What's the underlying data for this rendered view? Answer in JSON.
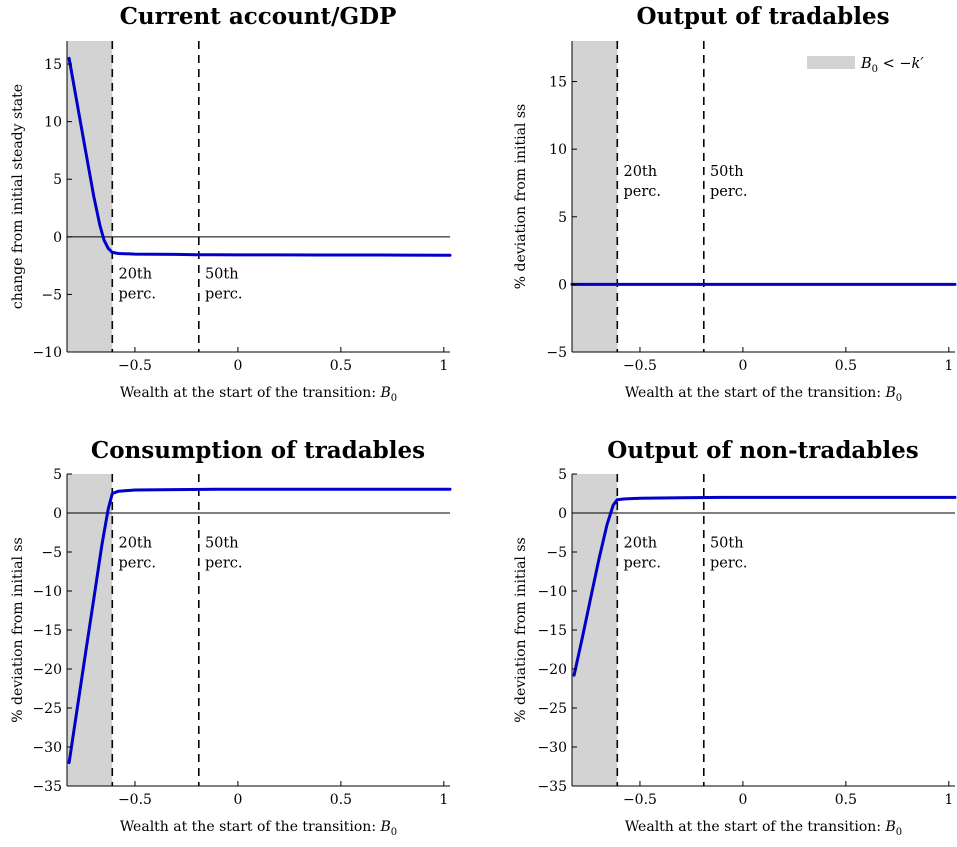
{
  "chart_data": [
    {
      "type": "line",
      "title": "Current account/GDP",
      "xlabel": "Wealth at the start of the transition:",
      "xlabel_symbol": "B",
      "xlabel_sub": "0",
      "ylabel": "change from initial steady state",
      "xlim": [
        -0.83,
        1.03
      ],
      "ylim": [
        -10,
        17
      ],
      "xticks": [
        -0.5,
        0,
        0.5,
        1
      ],
      "xtick_labels": [
        "−0.5",
        "0",
        "0.5",
        "1"
      ],
      "yticks": [
        -10,
        -5,
        0,
        5,
        10,
        15
      ],
      "ytick_labels": [
        "−10",
        "−5",
        "0",
        "5",
        "10",
        "15"
      ],
      "shade": [
        -0.83,
        -0.61
      ],
      "vlines": [
        -0.61,
        -0.19
      ],
      "annotations": [
        {
          "x": -0.58,
          "y": -3.6,
          "lines": [
            "20th",
            "perc."
          ]
        },
        {
          "x": -0.16,
          "y": -3.6,
          "lines": [
            "50th",
            "perc."
          ]
        }
      ],
      "series": [
        {
          "x": [
            -0.82,
            -0.78,
            -0.74,
            -0.7,
            -0.67,
            -0.65,
            -0.63,
            -0.61,
            -0.58,
            -0.5,
            -0.4,
            -0.3,
            -0.2,
            -0.1,
            0,
            0.2,
            0.4,
            0.6,
            0.8,
            1.03
          ],
          "y": [
            15.5,
            11.5,
            7.5,
            3.5,
            1.0,
            -0.3,
            -1.0,
            -1.35,
            -1.45,
            -1.5,
            -1.52,
            -1.53,
            -1.55,
            -1.56,
            -1.57,
            -1.57,
            -1.58,
            -1.58,
            -1.59,
            -1.6
          ]
        }
      ]
    },
    {
      "type": "line",
      "title": "Output of tradables",
      "xlabel": "Wealth at the start of the transition:",
      "xlabel_symbol": "B",
      "xlabel_sub": "0",
      "ylabel": "% deviation from initial ss",
      "xlim": [
        -0.83,
        1.03
      ],
      "ylim": [
        -5,
        18
      ],
      "xticks": [
        -0.5,
        0,
        0.5,
        1
      ],
      "xtick_labels": [
        "−0.5",
        "0",
        "0.5",
        "1"
      ],
      "yticks": [
        -5,
        0,
        5,
        10,
        15
      ],
      "ytick_labels": [
        "−5",
        "0",
        "5",
        "10",
        "15"
      ],
      "shade": [
        -0.83,
        -0.61
      ],
      "vlines": [
        -0.61,
        -0.19
      ],
      "annotations": [
        {
          "x": -0.58,
          "y": 8.0,
          "lines": [
            "20th",
            "perc."
          ]
        },
        {
          "x": -0.16,
          "y": 8.0,
          "lines": [
            "50th",
            "perc."
          ]
        }
      ],
      "legend": {
        "label": "B",
        "sub": "0",
        "rest": " < −k′",
        "color": "#d3d3d3",
        "placement": "top-right"
      },
      "series": [
        {
          "x": [
            -0.83,
            1.03
          ],
          "y": [
            0,
            0
          ]
        }
      ]
    },
    {
      "type": "line",
      "title": "Consumption of tradables",
      "xlabel": "Wealth at the start of the transition:",
      "xlabel_symbol": "B",
      "xlabel_sub": "0",
      "ylabel": "% deviation from initial ss",
      "xlim": [
        -0.83,
        1.03
      ],
      "ylim": [
        -35,
        5
      ],
      "xticks": [
        -0.5,
        0,
        0.5,
        1
      ],
      "xtick_labels": [
        "−0.5",
        "0",
        "0.5",
        "1"
      ],
      "yticks": [
        -35,
        -30,
        -25,
        -20,
        -15,
        -10,
        -5,
        0,
        5
      ],
      "ytick_labels": [
        "−35",
        "−30",
        "−25",
        "−20",
        "−15",
        "−10",
        "−5",
        "0",
        "5"
      ],
      "shade": [
        -0.83,
        -0.61
      ],
      "vlines": [
        -0.61,
        -0.19
      ],
      "annotations": [
        {
          "x": -0.58,
          "y": -4.4,
          "lines": [
            "20th",
            "perc."
          ]
        },
        {
          "x": -0.16,
          "y": -4.4,
          "lines": [
            "50th",
            "perc."
          ]
        }
      ],
      "series": [
        {
          "x": [
            -0.82,
            -0.78,
            -0.74,
            -0.7,
            -0.66,
            -0.63,
            -0.61,
            -0.58,
            -0.5,
            -0.3,
            -0.1,
            0,
            0.3,
            0.6,
            1.03
          ],
          "y": [
            -32,
            -25,
            -18,
            -11,
            -4,
            0.5,
            2.5,
            2.8,
            2.95,
            3.0,
            3.05,
            3.05,
            3.05,
            3.05,
            3.05
          ]
        }
      ]
    },
    {
      "type": "line",
      "title": "Output of non-tradables",
      "xlabel": "Wealth at the start of the transition:",
      "xlabel_symbol": "B",
      "xlabel_sub": "0",
      "ylabel": "% deviation from initial ss",
      "xlim": [
        -0.83,
        1.03
      ],
      "ylim": [
        -35,
        5
      ],
      "xticks": [
        -0.5,
        0,
        0.5,
        1
      ],
      "xtick_labels": [
        "−0.5",
        "0",
        "0.5",
        "1"
      ],
      "yticks": [
        -35,
        -30,
        -25,
        -20,
        -15,
        -10,
        -5,
        0,
        5
      ],
      "ytick_labels": [
        "−35",
        "−30",
        "−25",
        "−20",
        "−15",
        "−10",
        "−5",
        "0",
        "5"
      ],
      "shade": [
        -0.83,
        -0.61
      ],
      "vlines": [
        -0.61,
        -0.19
      ],
      "annotations": [
        {
          "x": -0.58,
          "y": -4.4,
          "lines": [
            "20th",
            "perc."
          ]
        },
        {
          "x": -0.16,
          "y": -4.4,
          "lines": [
            "50th",
            "perc."
          ]
        }
      ],
      "series": [
        {
          "x": [
            -0.82,
            -0.78,
            -0.74,
            -0.7,
            -0.66,
            -0.63,
            -0.61,
            -0.58,
            -0.5,
            -0.3,
            -0.1,
            0,
            0.3,
            0.6,
            1.03
          ],
          "y": [
            -20.8,
            -16,
            -11,
            -6,
            -1.5,
            1.0,
            1.7,
            1.8,
            1.9,
            1.95,
            2.0,
            2.0,
            2.0,
            2.0,
            2.0
          ]
        }
      ]
    }
  ],
  "colors": {
    "line": "#0000c8",
    "shade": "#d3d3d3",
    "axis": "#000000"
  }
}
